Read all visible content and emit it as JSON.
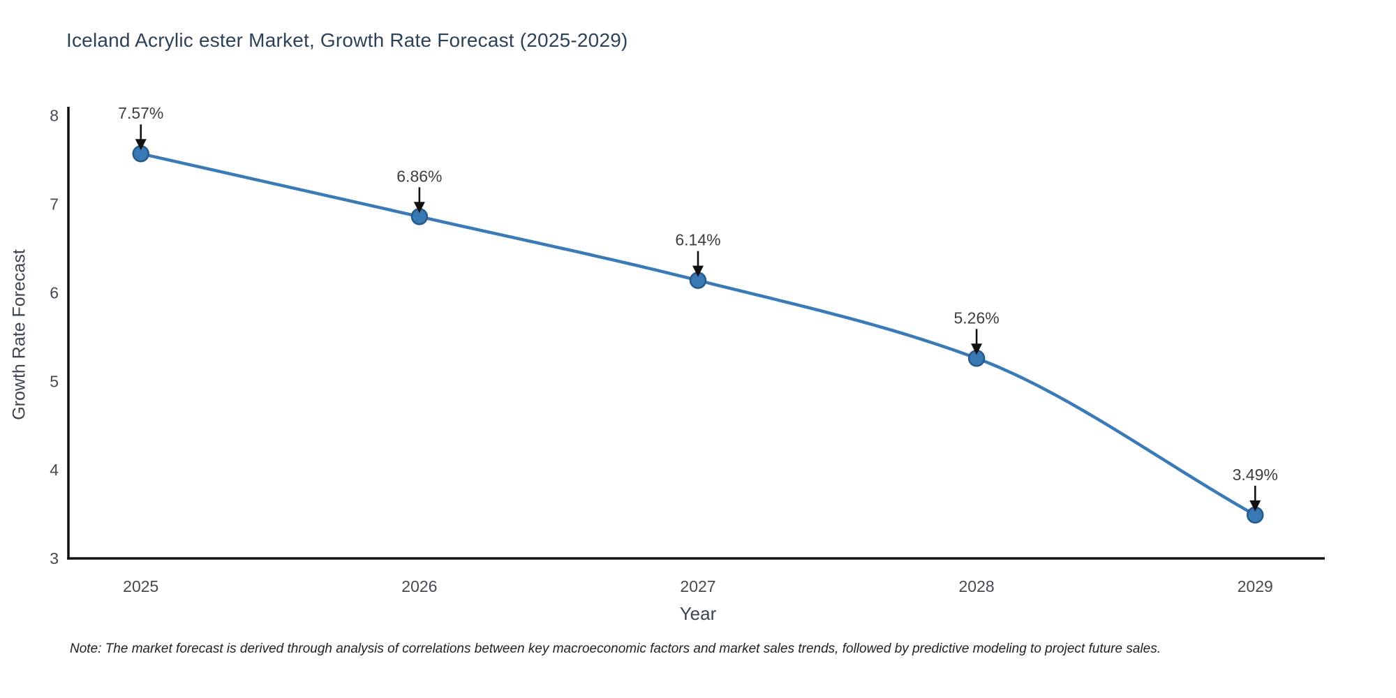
{
  "title": "Iceland Acrylic ester Market, Growth Rate Forecast (2025-2029)",
  "note": "Note: The market forecast is derived through analysis of correlations between key macroeconomic factors and market sales trends, followed by predictive modeling to project future sales.",
  "chart_data": {
    "type": "line",
    "title": "Iceland Acrylic ester Market, Growth Rate Forecast (2025-2029)",
    "xlabel": "Year",
    "ylabel": "Growth Rate Forecast",
    "x": [
      2025,
      2026,
      2027,
      2028,
      2029
    ],
    "values": [
      7.57,
      6.86,
      6.14,
      5.26,
      3.49
    ],
    "point_labels": [
      "7.57%",
      "6.86%",
      "6.14%",
      "5.26%",
      "3.49%"
    ],
    "xticks": [
      "2025",
      "2026",
      "2027",
      "2028",
      "2029"
    ],
    "yticks": [
      3,
      4,
      5,
      6,
      7,
      8
    ],
    "xlim": [
      2024.74,
      2029.25
    ],
    "ylim": [
      3,
      8.1
    ],
    "grid": false,
    "legend_position": "none",
    "smooth": true,
    "colors": {
      "line": "#3a7ab6",
      "marker_fill": "#3878b4",
      "marker_edge": "#275a89",
      "axis_spine": "#111111",
      "tick_label": "#444a52",
      "annotation_text": "#3d3d3d",
      "annotation_arrow": "#111111"
    }
  }
}
